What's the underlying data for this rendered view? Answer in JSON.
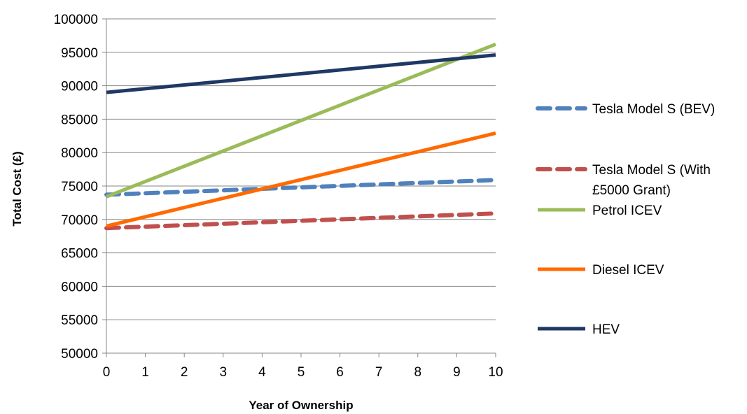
{
  "chart_data": {
    "type": "line",
    "title": "",
    "xlabel": "Year of Ownership",
    "ylabel": "Total Cost (£)",
    "xlim": [
      0,
      10
    ],
    "ylim": [
      50000,
      100000
    ],
    "x_ticks": [
      "0",
      "1",
      "2",
      "3",
      "4",
      "5",
      "6",
      "7",
      "8",
      "9",
      "10"
    ],
    "y_ticks": [
      "50000",
      "55000",
      "60000",
      "65000",
      "70000",
      "75000",
      "80000",
      "85000",
      "90000",
      "95000",
      "100000"
    ],
    "grid": "horizontal",
    "legend_position": "right",
    "series": [
      {
        "name": "Tesla Model S (BEV)",
        "legend_lines": [
          "Tesla Model S (BEV)"
        ],
        "color": "#4F81BD",
        "dashed": true,
        "x": [
          0,
          10
        ],
        "y": [
          73700,
          75900
        ]
      },
      {
        "name": "Tesla Model S (With £5000 Grant)",
        "legend_lines": [
          "Tesla Model S (With",
          "£5000 Grant)"
        ],
        "color": "#C0504D",
        "dashed": true,
        "x": [
          0,
          10
        ],
        "y": [
          68700,
          70900
        ]
      },
      {
        "name": "Petrol ICEV",
        "legend_lines": [
          "Petrol ICEV"
        ],
        "color": "#9BBB59",
        "dashed": false,
        "x": [
          0,
          10
        ],
        "y": [
          73400,
          96200
        ]
      },
      {
        "name": "Diesel ICEV",
        "legend_lines": [
          "Diesel ICEV"
        ],
        "color": "#FF6A00",
        "dashed": false,
        "x": [
          0,
          10
        ],
        "y": [
          69000,
          82900
        ]
      },
      {
        "name": "HEV",
        "legend_lines": [
          "HEV"
        ],
        "color": "#1F3864",
        "dashed": false,
        "x": [
          0,
          10
        ],
        "y": [
          89000,
          94600
        ]
      }
    ]
  }
}
